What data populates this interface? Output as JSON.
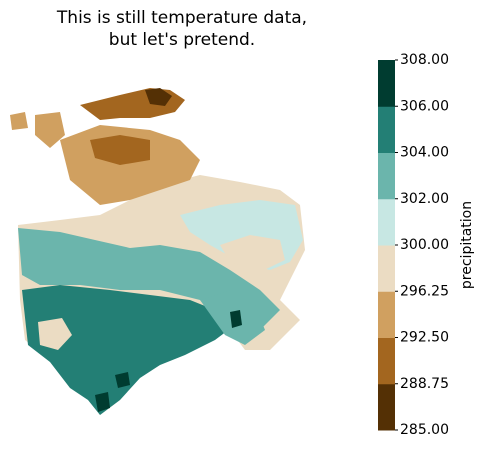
{
  "title": "This is still temperature data,\nbut let's pretend.",
  "colorbar": {
    "label": "precipitation",
    "ticks": [
      {
        "value": 285,
        "label": "285.00"
      },
      {
        "value": 288.75,
        "label": "288.75"
      },
      {
        "value": 292.5,
        "label": "292.50"
      },
      {
        "value": 296.25,
        "label": "296.25"
      },
      {
        "value": 300,
        "label": "300.00"
      },
      {
        "value": 302,
        "label": "302.00"
      },
      {
        "value": 304,
        "label": "304.00"
      },
      {
        "value": 306,
        "label": "306.00"
      },
      {
        "value": 308,
        "label": "308.00"
      }
    ],
    "colors": [
      "#543005",
      "#a3661f",
      "#d0a060",
      "#ebdcc3",
      "#c7e7e3",
      "#6bb5ac",
      "#237f75",
      "#003c30"
    ]
  }
}
